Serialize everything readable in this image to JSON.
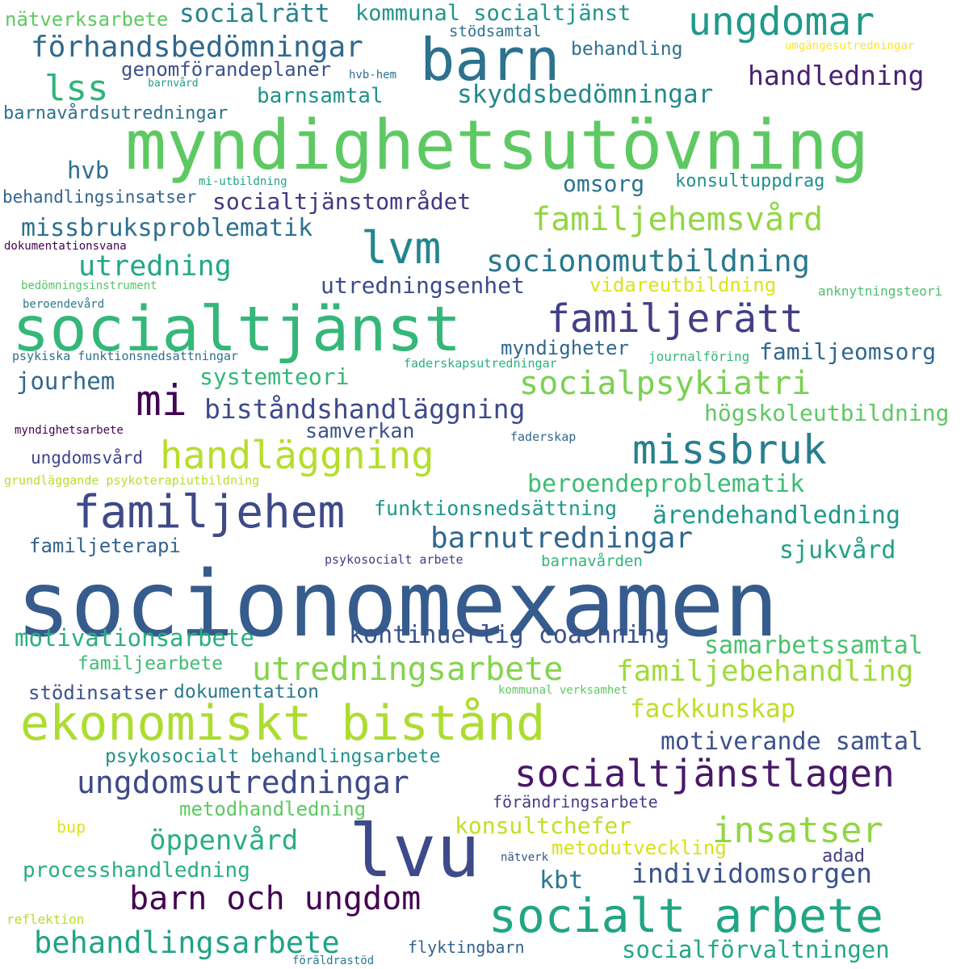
{
  "words": [
    {
      "text": "socionomexamen",
      "color": "#365c8d"
    },
    {
      "text": "myndighetsutövning",
      "color": "#5ec962"
    },
    {
      "text": "socialtjänst",
      "color": "#35b779"
    },
    {
      "text": "barn",
      "color": "#2c728e"
    },
    {
      "text": "lvu",
      "color": "#3e4a89"
    },
    {
      "text": "ekonomiskt bistånd",
      "color": "#addc30"
    },
    {
      "text": "familjehem",
      "color": "#3e4a89"
    },
    {
      "text": "socialt arbete",
      "color": "#21a585"
    },
    {
      "text": "ungdomar",
      "color": "#1f9a8a"
    },
    {
      "text": "socialtjänstlagen",
      "color": "#48186a"
    },
    {
      "text": "missbruk",
      "color": "#277f8e"
    },
    {
      "text": "lvm",
      "color": "#25858e"
    },
    {
      "text": "handläggning",
      "color": "#b5de2b"
    },
    {
      "text": "mi",
      "color": "#440154"
    },
    {
      "text": "familjerätt",
      "color": "#433e85"
    },
    {
      "text": "familjehemsvård",
      "color": "#90d743"
    },
    {
      "text": "insatser",
      "color": "#90d743"
    },
    {
      "text": "ungdomsutredningar",
      "color": "#3e4a89"
    },
    {
      "text": "utredningsarbete",
      "color": "#84d44b"
    },
    {
      "text": "barn och ungdom",
      "color": "#440154"
    },
    {
      "text": "socialpsykiatri",
      "color": "#7ad151"
    },
    {
      "text": "förhandsbedömningar",
      "color": "#31688e"
    },
    {
      "text": "barnutredningar",
      "color": "#31688e"
    },
    {
      "text": "socionomutbildning",
      "color": "#2a788e"
    },
    {
      "text": "familjebehandling",
      "color": "#9fda3a"
    },
    {
      "text": "behandlingsarbete",
      "color": "#20a386"
    },
    {
      "text": "individomsorgen",
      "color": "#3b528b"
    },
    {
      "text": "lss",
      "color": "#2fb47c"
    },
    {
      "text": "utredning",
      "color": "#22a884"
    },
    {
      "text": "biståndshandläggning",
      "color": "#3e4a89"
    },
    {
      "text": "öppenvård",
      "color": "#29af7f"
    },
    {
      "text": "kontinuerlig coachning",
      "color": "#3b528b"
    },
    {
      "text": "handledning",
      "color": "#482173"
    },
    {
      "text": "beroendeproblematik",
      "color": "#3dbc74"
    },
    {
      "text": "socialrätt",
      "color": "#26828e"
    },
    {
      "text": "skyddsbedömningar",
      "color": "#23898e"
    },
    {
      "text": "missbruksproblematik",
      "color": "#2d708e"
    },
    {
      "text": "socialtjänstområdet",
      "color": "#453781"
    },
    {
      "text": "kommunal socialtjänst",
      "color": "#1f958b"
    },
    {
      "text": "samarbetssamtal",
      "color": "#4ac16d"
    },
    {
      "text": "motivationsarbete",
      "color": "#2ab07f"
    },
    {
      "text": "ärendehandledning",
      "color": "#1f988b"
    },
    {
      "text": "fackkunskap",
      "color": "#bddf26"
    },
    {
      "text": "motiverande samtal",
      "color": "#3b528b"
    },
    {
      "text": "konsultchefer",
      "color": "#c2df23"
    },
    {
      "text": "sjukvård",
      "color": "#1fa188"
    },
    {
      "text": "socialförvaltningen",
      "color": "#22a785"
    },
    {
      "text": "familjeomsorg",
      "color": "#31688e"
    },
    {
      "text": "utredningsenhet",
      "color": "#3e4a89"
    },
    {
      "text": "systemteori",
      "color": "#35b779"
    },
    {
      "text": "högskoleutbildning",
      "color": "#5ec962"
    },
    {
      "text": "jourhem",
      "color": "#31688e"
    },
    {
      "text": "kbt",
      "color": "#2a788e"
    },
    {
      "text": "funktionsnedsättning",
      "color": "#1f988b"
    },
    {
      "text": "psykosocialt behandlingsarbete",
      "color": "#21918c"
    },
    {
      "text": "processhandledning",
      "color": "#29af7f"
    },
    {
      "text": "omsorg",
      "color": "#2c728e"
    },
    {
      "text": "barnsamtal",
      "color": "#21918c"
    },
    {
      "text": "hvb",
      "color": "#2d708e"
    },
    {
      "text": "samverkan",
      "color": "#3b528b"
    },
    {
      "text": "genomförandeplaner",
      "color": "#3b528b"
    },
    {
      "text": "vidareutbildning",
      "color": "#dde318"
    },
    {
      "text": "metodhandledning",
      "color": "#5ec962"
    },
    {
      "text": "metodutveckling",
      "color": "#d8e219"
    },
    {
      "text": "nätverksarbete",
      "color": "#5ec962"
    },
    {
      "text": "stödinsatser",
      "color": "#3b528b"
    },
    {
      "text": "dokumentation",
      "color": "#2a788e"
    },
    {
      "text": "myndigheter",
      "color": "#31688e"
    },
    {
      "text": "konsultuppdrag",
      "color": "#21918c"
    },
    {
      "text": "familjeterapi",
      "color": "#33638d"
    },
    {
      "text": "familjearbete",
      "color": "#40bd72"
    },
    {
      "text": "ungdomsvård",
      "color": "#414487"
    },
    {
      "text": "barnavårdsutredningar",
      "color": "#2c728e"
    },
    {
      "text": "behandlingsinsatser",
      "color": "#33638d"
    },
    {
      "text": "behandling",
      "color": "#2d708e"
    },
    {
      "text": "förändringsarbete",
      "color": "#433e85"
    },
    {
      "text": "adad",
      "color": "#423f85"
    },
    {
      "text": "stödsamtal",
      "color": "#2c728e"
    },
    {
      "text": "bup",
      "color": "#dfe318"
    },
    {
      "text": "flyktingbarn",
      "color": "#33638d"
    },
    {
      "text": "anknytningsteori",
      "color": "#4ac16d"
    },
    {
      "text": "barnavården",
      "color": "#31b57b"
    },
    {
      "text": "journalföring",
      "color": "#35b779"
    },
    {
      "text": "faderskapsutredningar",
      "color": "#2ab07f"
    },
    {
      "text": "psykosocialt arbete",
      "color": "#433e85"
    },
    {
      "text": "kommunal verksamhet",
      "color": "#5ec962"
    },
    {
      "text": "faderskap",
      "color": "#31688e"
    },
    {
      "text": "hvb-hem",
      "color": "#2d708e"
    },
    {
      "text": "mi-utbildning",
      "color": "#21a585"
    },
    {
      "text": "bedömningsinstrument",
      "color": "#54c568"
    },
    {
      "text": "grundläggande psykoterapiutbildning",
      "color": "#b8de29"
    },
    {
      "text": "psykiska funktionsnedsättningar",
      "color": "#2d708e"
    },
    {
      "text": "beroendevård",
      "color": "#2a788e"
    },
    {
      "text": "dokumentationsvana",
      "color": "#440154"
    },
    {
      "text": "myndighetsarbete",
      "color": "#440154"
    },
    {
      "text": "reflektion",
      "color": "#b8de29"
    },
    {
      "text": "nätverk",
      "color": "#3b528b"
    },
    {
      "text": "föräldrastöd",
      "color": "#2a788e"
    },
    {
      "text": "barnvård",
      "color": "#1fa088"
    },
    {
      "text": "umgängesutredningar",
      "color": "#fde725"
    }
  ]
}
